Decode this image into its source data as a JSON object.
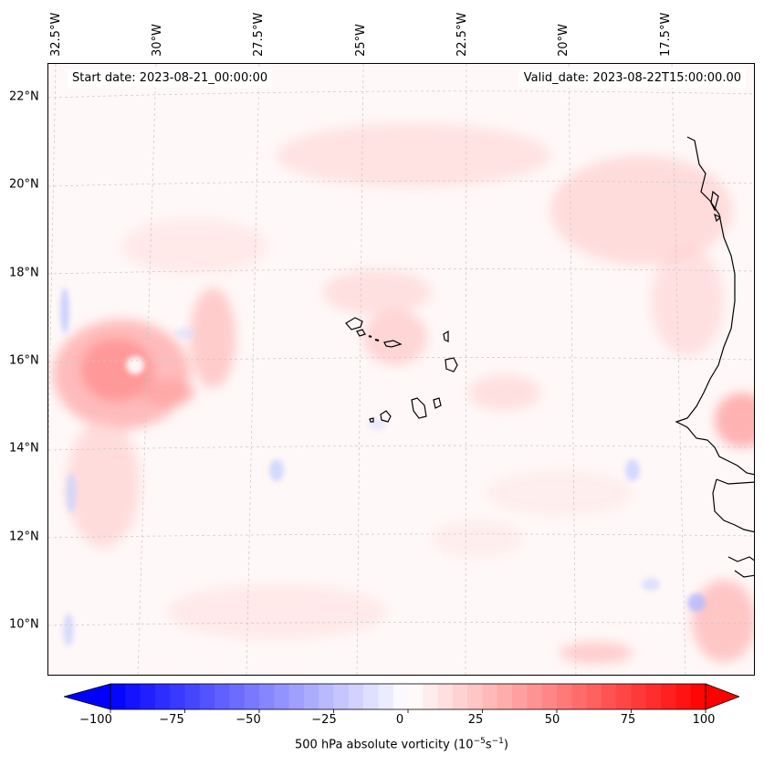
{
  "map": {
    "lon_labels": [
      "32.5°W",
      "30°W",
      "27.5°W",
      "25°W",
      "22.5°W",
      "20°W",
      "17.5°W"
    ],
    "lat_labels": [
      "22°N",
      "20°N",
      "18°N",
      "16°N",
      "14°N",
      "12°N",
      "10°N"
    ],
    "start_date": "Start date: 2023-08-21_00:00:00",
    "valid_date": "Valid_date: 2023-08-22T15:00:00.00",
    "variable": "500 hPa absolute vorticity",
    "colormap": {
      "negative": "#0000ff",
      "zero": "#ffffff",
      "positive": "#ff0000"
    },
    "coastline_color": "#000000"
  },
  "colorbar": {
    "ticks": [
      "−100",
      "−75",
      "−50",
      "−25",
      "0",
      "25",
      "50",
      "75",
      "100"
    ],
    "tick_values": [
      -100,
      -75,
      -50,
      -25,
      0,
      25,
      50,
      75,
      100
    ],
    "range": [
      -100,
      100
    ],
    "levels": 40,
    "label_main": "500 hPa absolute vorticity (10",
    "label_exp1": "−5",
    "label_mid": "s",
    "label_exp2": "−1",
    "label_end": ")"
  }
}
